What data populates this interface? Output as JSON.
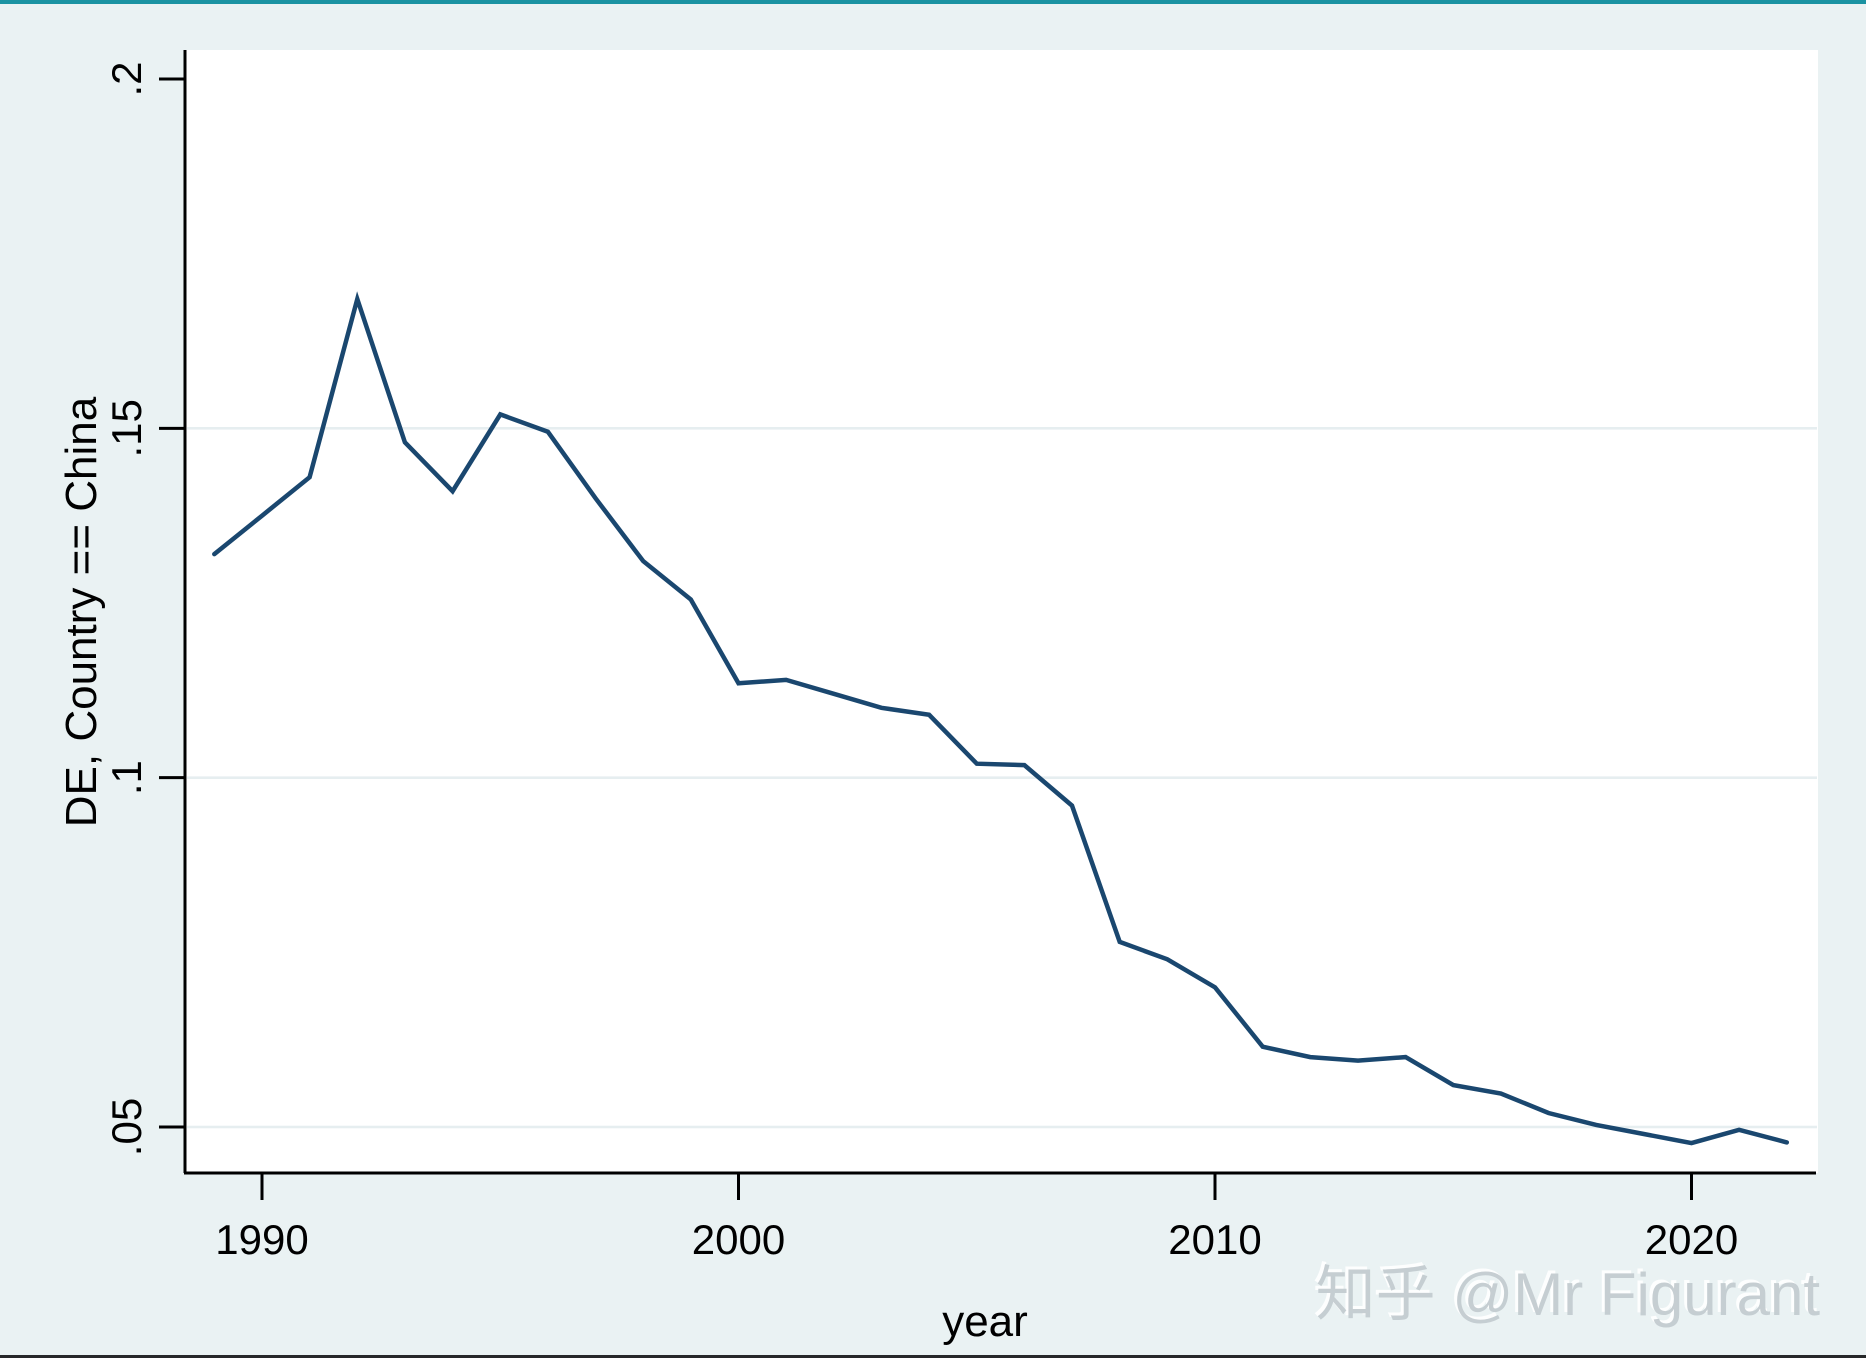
{
  "chart_data": {
    "type": "line",
    "title": "",
    "xlabel": "year",
    "ylabel": "DE, Country == China",
    "legend": "none",
    "grid": "horizontal-only",
    "xlim": [
      1988.4,
      2022.7
    ],
    "ylim": [
      0.044,
      0.204
    ],
    "x_ticks": [
      {
        "value": 1990,
        "label": "1990"
      },
      {
        "value": 2000,
        "label": "2000"
      },
      {
        "value": 2010,
        "label": "2010"
      },
      {
        "value": 2020,
        "label": "2020"
      }
    ],
    "y_ticks": [
      {
        "value": 0.05,
        "label": ".05",
        "grid": true
      },
      {
        "value": 0.1,
        "label": ".1",
        "grid": true
      },
      {
        "value": 0.15,
        "label": ".15",
        "grid": true
      },
      {
        "value": 0.2,
        "label": ".2",
        "grid": false
      }
    ],
    "series": [
      {
        "name": "DE, Country == China",
        "color": "#1a476f",
        "x": [
          1989,
          1990,
          1991,
          1992,
          1993,
          1994,
          1995,
          1996,
          1997,
          1998,
          1999,
          2000,
          2001,
          2002,
          2003,
          2004,
          2005,
          2006,
          2007,
          2008,
          2009,
          2010,
          2011,
          2012,
          2013,
          2014,
          2015,
          2016,
          2017,
          2018,
          2019,
          2020,
          2021,
          2022
        ],
        "values": [
          0.132,
          0.1375,
          0.143,
          0.1685,
          0.148,
          0.141,
          0.152,
          0.1495,
          0.14,
          0.131,
          0.1255,
          0.1135,
          0.114,
          0.112,
          0.11,
          0.109,
          0.102,
          0.1018,
          0.096,
          0.0765,
          0.074,
          0.07,
          0.0615,
          0.06,
          0.0595,
          0.06,
          0.056,
          0.0548,
          0.052,
          0.0503,
          0.049,
          0.0477,
          0.0496,
          0.0478
        ]
      }
    ]
  },
  "watermark": {
    "text": "知乎 @Mr Figurant"
  },
  "colors": {
    "background": "#eaf2f3",
    "plot_background": "#ffffff",
    "top_accent": "#1b93a2",
    "bottom_edge": "#26282a",
    "axis": "#000000",
    "gridline": "#e6eef0",
    "line": "#1a476f",
    "watermark": "#c3cbd0"
  }
}
